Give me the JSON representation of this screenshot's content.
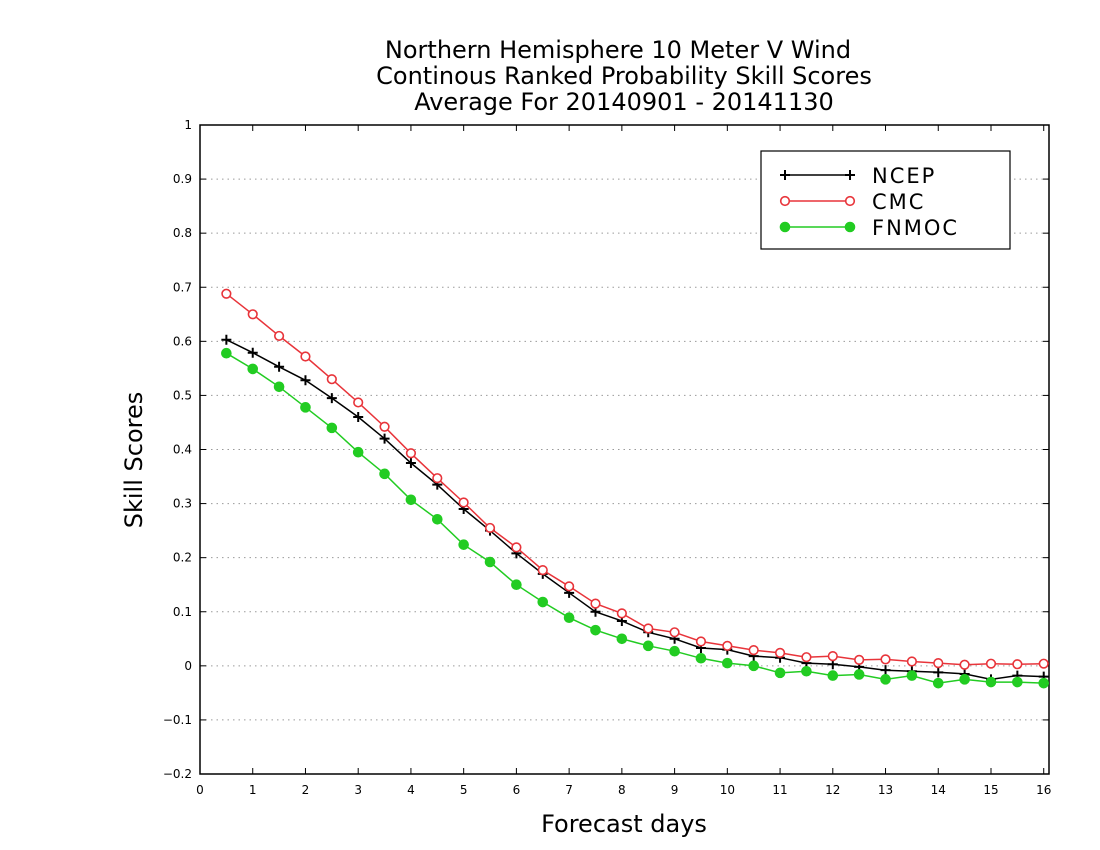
{
  "chart_data": {
    "type": "line",
    "title": [
      "Northern Hemisphere 10 Meter V Wind",
      "Continous Ranked Probability Skill Scores",
      "Average For 20140901 - 20141130"
    ],
    "xlabel": "Forecast days",
    "ylabel": "Skill Scores",
    "xlim": [
      0,
      16.1
    ],
    "ylim": [
      -0.2,
      1
    ],
    "xticks": [
      "0",
      "1",
      "2",
      "3",
      "4",
      "5",
      "6",
      "7",
      "8",
      "9",
      "10",
      "11",
      "12",
      "13",
      "14",
      "15",
      "16"
    ],
    "yticks": [
      "−0.2",
      "−0.1",
      "0",
      "0.1",
      "0.2",
      "0.3",
      "0.4",
      "0.5",
      "0.6",
      "0.7",
      "0.8",
      "0.9",
      "1"
    ],
    "grid": "horizontal dotted",
    "legend_position": "top-right",
    "x": [
      0.5,
      1,
      1.5,
      2,
      2.5,
      3,
      3.5,
      4,
      4.5,
      5,
      5.5,
      6,
      6.5,
      7,
      7.5,
      8,
      8.5,
      9,
      9.5,
      10,
      10.5,
      11,
      11.5,
      12,
      12.5,
      13,
      13.5,
      14,
      14.5,
      15,
      15.5,
      16
    ],
    "series": [
      {
        "name": "NCEP",
        "color": "#000000",
        "marker": "plus",
        "values": [
          0.603,
          0.579,
          0.553,
          0.528,
          0.495,
          0.46,
          0.42,
          0.375,
          0.335,
          0.29,
          0.25,
          0.208,
          0.17,
          0.135,
          0.1,
          0.083,
          0.062,
          0.05,
          0.033,
          0.03,
          0.018,
          0.015,
          0.005,
          0.003,
          -0.002,
          -0.008,
          -0.01,
          -0.012,
          -0.015,
          -0.025,
          -0.018,
          -0.02
        ]
      },
      {
        "name": "CMC",
        "color": "#e8343a",
        "marker": "open-circle",
        "values": [
          0.688,
          0.65,
          0.61,
          0.572,
          0.53,
          0.487,
          0.442,
          0.393,
          0.347,
          0.302,
          0.255,
          0.219,
          0.177,
          0.147,
          0.115,
          0.097,
          0.069,
          0.062,
          0.045,
          0.037,
          0.029,
          0.024,
          0.016,
          0.018,
          0.011,
          0.012,
          0.008,
          0.005,
          0.002,
          0.004,
          0.003,
          0.004
        ]
      },
      {
        "name": "FNMOC",
        "color": "#22cc22",
        "marker": "filled-circle",
        "values": [
          0.578,
          0.549,
          0.516,
          0.478,
          0.44,
          0.395,
          0.355,
          0.307,
          0.271,
          0.224,
          0.192,
          0.15,
          0.118,
          0.089,
          0.066,
          0.05,
          0.037,
          0.027,
          0.014,
          0.005,
          0.0,
          -0.013,
          -0.01,
          -0.018,
          -0.016,
          -0.025,
          -0.018,
          -0.032,
          -0.025,
          -0.03,
          -0.03,
          -0.032
        ]
      }
    ]
  }
}
